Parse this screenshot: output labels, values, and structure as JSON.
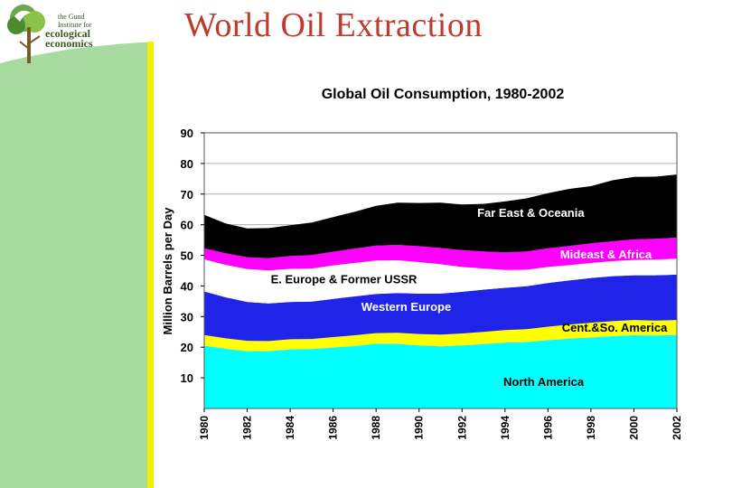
{
  "slide": {
    "title": "World Oil Extraction",
    "logo_text_1": "the Gund Institute for",
    "logo_text_2": "ecological economics"
  },
  "colors": {
    "slide_background": "#a8dba0",
    "title": "#c0392b",
    "north_america": "#00ffff",
    "cent_so_america": "#ffff00",
    "western_europe": "#1f24e8",
    "e_europe_former_ussr": "#ffffff",
    "mideast_africa": "#ff00ff",
    "far_east_oceania": "#000000"
  },
  "chart_data": {
    "type": "area",
    "title": "Global Oil Consumption, 1980-2002",
    "xlabel": "",
    "ylabel": "Million Barrels per Day",
    "ylim": [
      0,
      90
    ],
    "yticks": [
      10,
      20,
      30,
      40,
      50,
      60,
      70,
      80,
      90
    ],
    "x": [
      1980,
      1981,
      1982,
      1983,
      1984,
      1985,
      1986,
      1987,
      1988,
      1989,
      1990,
      1991,
      1992,
      1993,
      1994,
      1995,
      1996,
      1997,
      1998,
      1999,
      2000,
      2001,
      2002
    ],
    "xticks": [
      "1980",
      "1982",
      "1984",
      "1986",
      "1988",
      "1990",
      "1992",
      "1994",
      "1996",
      "1998",
      "2000",
      "2002"
    ],
    "stacked": true,
    "grid": true,
    "series": [
      {
        "name": "North America",
        "values": [
          20.5,
          19.5,
          18.7,
          18.7,
          19.3,
          19.4,
          19.9,
          20.4,
          21.1,
          21.1,
          20.6,
          20.3,
          20.6,
          21.0,
          21.5,
          21.7,
          22.3,
          22.8,
          23.2,
          23.6,
          23.9,
          23.8,
          24.0
        ]
      },
      {
        "name": "Cent.&So. America",
        "values": [
          3.5,
          3.4,
          3.4,
          3.3,
          3.3,
          3.3,
          3.4,
          3.5,
          3.5,
          3.6,
          3.7,
          3.8,
          3.9,
          4.0,
          4.1,
          4.2,
          4.4,
          4.6,
          4.8,
          4.9,
          5.0,
          4.9,
          4.9
        ]
      },
      {
        "name": "Western Europe",
        "values": [
          14.2,
          13.4,
          12.7,
          12.3,
          12.2,
          12.2,
          12.5,
          12.7,
          12.8,
          13.0,
          13.2,
          13.4,
          13.6,
          13.8,
          13.8,
          14.0,
          14.3,
          14.4,
          14.6,
          14.7,
          14.6,
          14.8,
          14.8
        ]
      },
      {
        "name": "E. Europe & Former USSR",
        "values": [
          10.5,
          10.6,
          10.7,
          10.8,
          10.8,
          10.8,
          10.9,
          10.9,
          10.9,
          10.7,
          10.3,
          9.6,
          8.1,
          6.9,
          5.8,
          5.4,
          5.2,
          5.0,
          4.9,
          4.9,
          5.0,
          5.1,
          5.2
        ]
      },
      {
        "name": "Mideast & Africa",
        "values": [
          3.6,
          3.8,
          3.9,
          4.0,
          4.2,
          4.4,
          4.5,
          4.7,
          4.9,
          5.0,
          5.2,
          5.3,
          5.5,
          5.6,
          5.8,
          6.0,
          6.1,
          6.3,
          6.4,
          6.5,
          6.7,
          6.8,
          6.9
        ]
      },
      {
        "name": "Far East & Oceania",
        "values": [
          10.9,
          9.7,
          9.4,
          9.8,
          10.0,
          10.6,
          11.3,
          12.0,
          13.0,
          13.8,
          14.1,
          14.8,
          14.9,
          15.5,
          16.6,
          17.3,
          18.0,
          18.6,
          18.7,
          19.9,
          20.4,
          20.3,
          20.6
        ]
      }
    ],
    "labels": [
      {
        "text": "Far East & Oceania",
        "x": 1995.2,
        "y": 64
      },
      {
        "text": "Mideast & Africa",
        "x": 1998.7,
        "y": 50.5
      },
      {
        "text": "E. Europe & Former USSR",
        "x": 1986.5,
        "y": 42.3
      },
      {
        "text": "Western Europe",
        "x": 1989.4,
        "y": 33.3
      },
      {
        "text": "Cent.&So. America",
        "x": 1999.1,
        "y": 26.5
      },
      {
        "text": "North America",
        "x": 1995.8,
        "y": 8.8
      }
    ]
  }
}
